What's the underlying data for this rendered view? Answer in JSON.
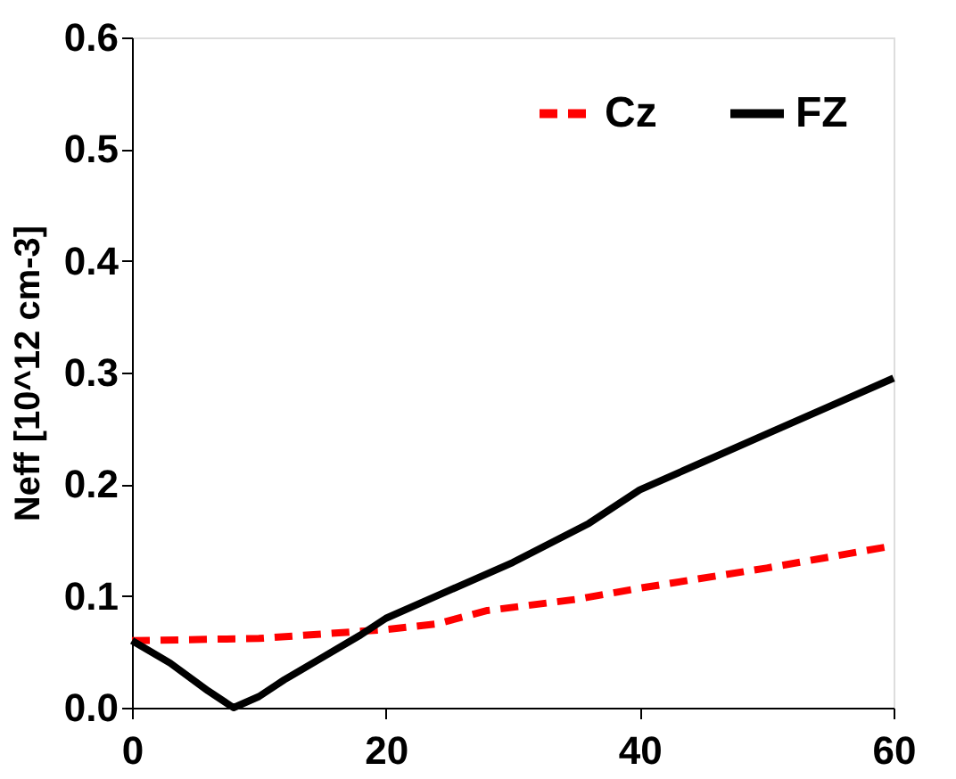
{
  "chart_data": {
    "type": "line",
    "ylabel": "Neff  [10^12 cm-3]",
    "xlim": [
      0,
      60
    ],
    "xticks": [
      0,
      20,
      40,
      60
    ],
    "ylim": [
      0,
      0.6
    ],
    "yticks": [
      {
        "value": 0,
        "label": "0.0"
      },
      {
        "value": 0.1,
        "label": "0.1"
      },
      {
        "value": 0.2,
        "label": "0.2"
      },
      {
        "value": 0.3,
        "label": "0.3"
      },
      {
        "value": 0.4,
        "label": "0.4"
      },
      {
        "value": 0.5,
        "label": "0.5"
      },
      {
        "value": 0.6,
        "label": "0.6"
      }
    ],
    "grid": false,
    "legend": "top right",
    "series": [
      {
        "name": "Cz",
        "color": "#ff0000",
        "line_style": "dashed",
        "x": [
          0,
          10,
          20,
          24,
          28,
          35,
          40,
          50,
          60
        ],
        "values": [
          0.06,
          0.062,
          0.07,
          0.075,
          0.087,
          0.097,
          0.107,
          0.125,
          0.145
        ]
      },
      {
        "name": "FZ",
        "color": "#000000",
        "line_style": "solid",
        "x": [
          0,
          3,
          6,
          8,
          10,
          12,
          15,
          18,
          20,
          24,
          30,
          36,
          40,
          45,
          50,
          55,
          60
        ],
        "values": [
          0.06,
          0.04,
          0.015,
          0.0,
          0.01,
          0.025,
          0.045,
          0.065,
          0.08,
          0.1,
          0.13,
          0.165,
          0.195,
          0.22,
          0.245,
          0.27,
          0.295
        ]
      }
    ]
  }
}
